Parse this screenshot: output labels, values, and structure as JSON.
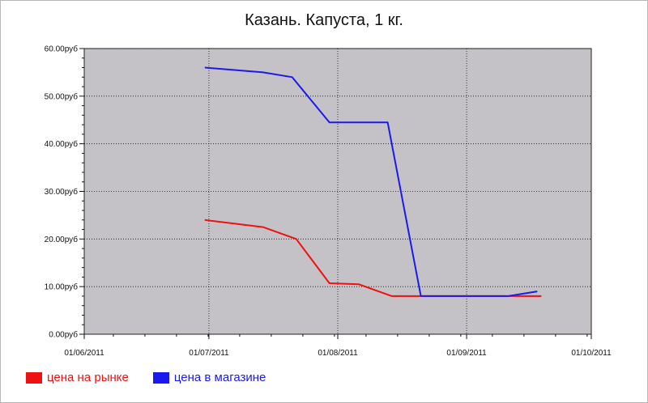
{
  "chart_data": {
    "type": "line",
    "title": "Казань. Капуста, 1 кг.",
    "ylim": [
      0,
      60
    ],
    "y_ticks": [
      "0.00руб",
      "10.00руб",
      "20.00руб",
      "30.00руб",
      "40.00руб",
      "50.00руб",
      "60.00руб"
    ],
    "y_tick_values": [
      0,
      10,
      20,
      30,
      40,
      50,
      60
    ],
    "x_ticks": [
      "01/06/2011",
      "01/07/2011",
      "01/08/2011",
      "01/09/2011",
      "01/10/2011"
    ],
    "x_tick_values": [
      "2011-06-01",
      "2011-07-01",
      "2011-08-01",
      "2011-09-01",
      "2011-10-01"
    ],
    "xlim": [
      "2011-06-01",
      "2011-10-01"
    ],
    "grid": true,
    "background_color": "#c4c2c6",
    "legend_position": "bottom-left",
    "series": [
      {
        "name": "цена на рынке",
        "color": "#ee1111",
        "points": [
          [
            "2011-06-30",
            24.0
          ],
          [
            "2011-07-14",
            22.5
          ],
          [
            "2011-07-22",
            20.0
          ],
          [
            "2011-07-30",
            10.7
          ],
          [
            "2011-08-06",
            10.5
          ],
          [
            "2011-08-14",
            8.0
          ],
          [
            "2011-08-21",
            8.0
          ],
          [
            "2011-09-12",
            8.0
          ],
          [
            "2011-09-19",
            8.0
          ]
        ]
      },
      {
        "name": "цена в магазине",
        "color": "#1a1aee",
        "points": [
          [
            "2011-06-30",
            56.0
          ],
          [
            "2011-07-14",
            55.0
          ],
          [
            "2011-07-21",
            54.0
          ],
          [
            "2011-07-30",
            44.5
          ],
          [
            "2011-08-13",
            44.5
          ],
          [
            "2011-08-21",
            8.0
          ],
          [
            "2011-09-11",
            8.0
          ],
          [
            "2011-09-18",
            9.0
          ]
        ]
      }
    ]
  }
}
